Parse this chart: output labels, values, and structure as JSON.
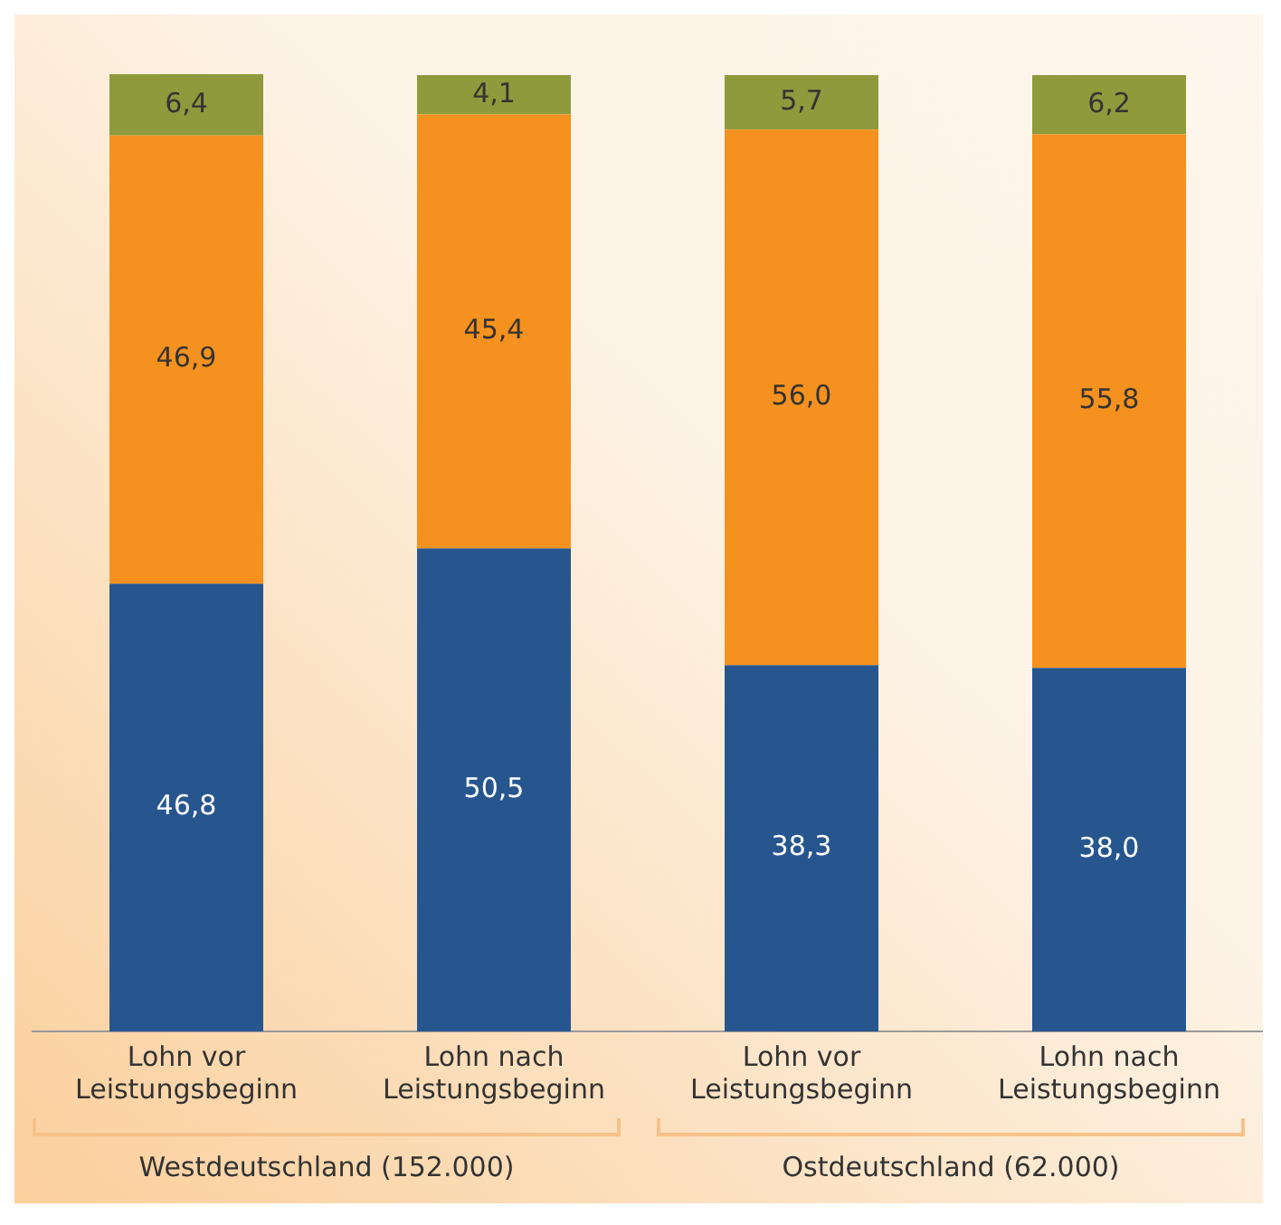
{
  "chart_data": {
    "type": "bar",
    "stacked": true,
    "legend": false,
    "grid": false,
    "categories": [
      "Lohn vor Leistungsbeginn",
      "Lohn nach Leistungsbeginn",
      "Lohn vor Leistungsbeginn",
      "Lohn nach Leistungsbeginn"
    ],
    "series": [
      {
        "color": "#27568f",
        "values": [
          46.8,
          50.5,
          38.3,
          38.0
        ],
        "value_labels": [
          "46,8",
          "50,5",
          "38,3",
          "38,0"
        ]
      },
      {
        "color": "#f5911e",
        "values": [
          46.9,
          45.4,
          56.0,
          55.8
        ],
        "value_labels": [
          "46,9",
          "45,4",
          "56,0",
          "55,8"
        ]
      },
      {
        "color": "#8f9a3c",
        "values": [
          6.4,
          4.1,
          5.7,
          6.2
        ],
        "value_labels": [
          "6,4",
          "4,1",
          "5,7",
          "6,2"
        ]
      }
    ],
    "annotations": [
      "Westdeutschland (152.000)",
      "Ostdeutschland (62.000)"
    ]
  }
}
